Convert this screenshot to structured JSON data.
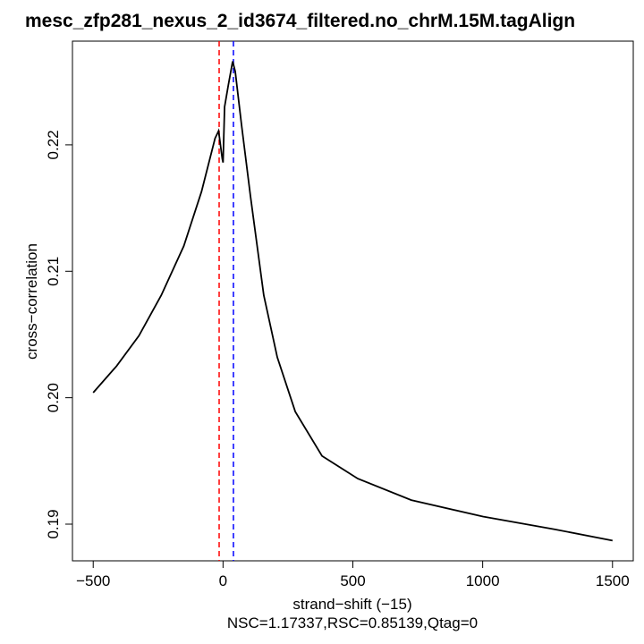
{
  "chart_data": {
    "type": "line",
    "title": "mesc_zfp281_nexus_2_id3674_filtered.no_chrM.15M.tagAlign",
    "x_label": "strand−shift (−15)",
    "y_label": "cross−correlation",
    "subtitle": "NSC=1.17337,RSC=0.85139,Qtag=0",
    "xlim": [
      -580,
      1580
    ],
    "ylim": [
      0.1871,
      0.2282
    ],
    "xticks": [
      {
        "value": -500,
        "label": "−500"
      },
      0,
      500,
      1000,
      1500
    ],
    "yticks": [
      0.19,
      {
        "value": 0.2,
        "label": "0.20"
      },
      0.21,
      0.22
    ],
    "series": [
      {
        "color": "#000000",
        "x": [
          -500,
          -410,
          -324,
          -238,
          -151,
          -83,
          -31,
          -17,
          -3,
          0,
          6,
          20,
          37,
          47,
          71,
          106,
          157,
          209,
          278,
          381,
          519,
          725,
          1001,
          1276,
          1500
        ],
        "values": [
          0.2004,
          0.2025,
          0.2049,
          0.2081,
          0.212,
          0.2163,
          0.2205,
          0.2211,
          0.2189,
          0.2186,
          0.223,
          0.2247,
          0.2266,
          0.2258,
          0.2216,
          0.2159,
          0.2081,
          0.2032,
          0.1989,
          0.1954,
          0.1936,
          0.1919,
          0.1906,
          0.1896,
          0.1887
        ]
      }
    ],
    "vlines": [
      {
        "value": -15,
        "color": "#ff0000"
      },
      {
        "value": 40,
        "color": "#0000ff"
      }
    ]
  }
}
